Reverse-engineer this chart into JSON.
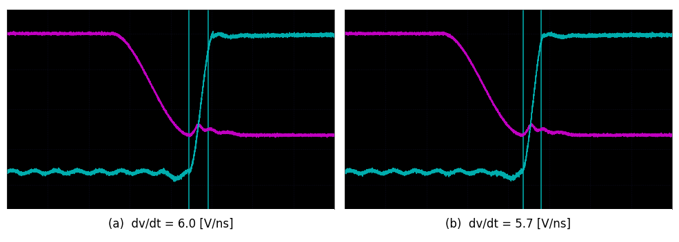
{
  "label_a": "(a)  dv/dt = 6.0 [V/ns]",
  "label_b": "(b)  dv/dt = 5.7 [V/ns]",
  "bg_color": "#000000",
  "outer_bg": "#ffffff",
  "magenta_color": "#cc00cc",
  "cyan_color": "#00b8b8",
  "grid_color": "#0a0a25",
  "vline_color": "#006060",
  "label_fontsize": 12,
  "label_color": "#000000",
  "fig_width": 9.85,
  "fig_height": 3.52
}
